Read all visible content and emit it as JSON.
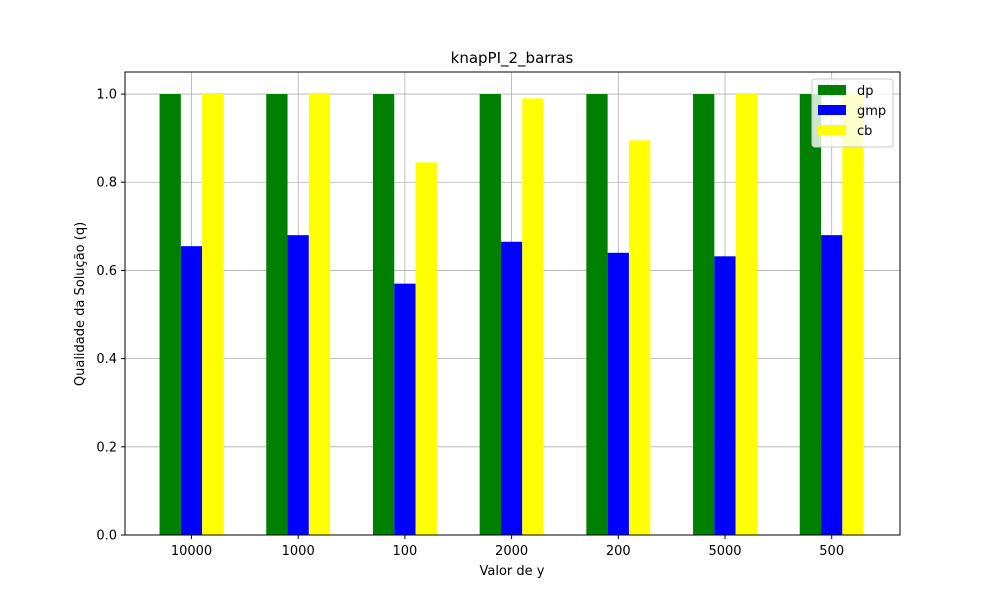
{
  "chart_data": {
    "type": "bar",
    "title": "knapPI_2_barras",
    "xlabel": "Valor de y",
    "ylabel": "Qualidade da Solução (q)",
    "categories": [
      "10000",
      "1000",
      "100",
      "2000",
      "200",
      "5000",
      "500"
    ],
    "ylim": [
      0,
      1.05
    ],
    "yticks": [
      "0.0",
      "0.2",
      "0.4",
      "0.6",
      "0.8",
      "1.0"
    ],
    "grid": true,
    "legend_position": "top-right",
    "series": [
      {
        "name": "dp",
        "color": "#008000",
        "values": [
          1.0,
          1.0,
          1.0,
          1.0,
          1.0,
          1.0,
          1.0
        ]
      },
      {
        "name": "gmp",
        "color": "#0000ff",
        "values": [
          0.655,
          0.68,
          0.57,
          0.665,
          0.64,
          0.632,
          0.68
        ]
      },
      {
        "name": "cb",
        "color": "#ffff00",
        "values": [
          1.0,
          1.0,
          0.845,
          0.99,
          0.895,
          1.0,
          1.0
        ]
      }
    ]
  }
}
